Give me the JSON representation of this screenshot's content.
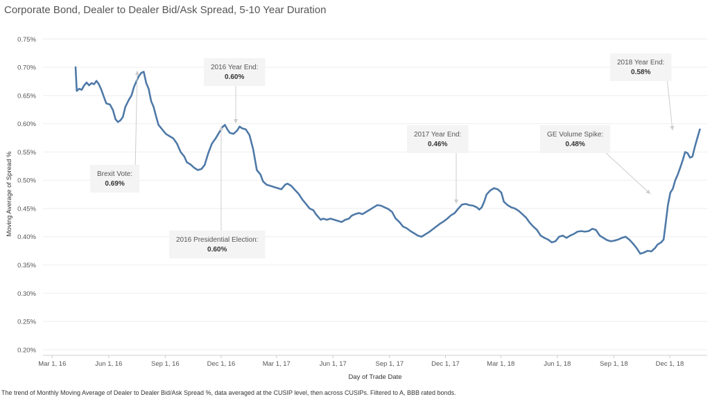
{
  "title": "Corporate Bond, Dealer to Dealer Bid/Ask Spread, 5-10 Year Duration",
  "footnote": "The trend of Monthly Moving Average of Dealer to Dealer Bid/Ask Spread %, data averaged at the CUSIP level, then across CUSIPs. Filtered to A, BBB rated bonds.",
  "colors": {
    "line": "#4e79a7",
    "annotation_bg": "#f4f4f4",
    "axis": "#dddddd"
  },
  "chart_data": {
    "type": "line",
    "xlabel": "Day of Trade Date",
    "ylabel": "Moving Average of Spread %",
    "ylim": [
      0.0019,
      0.0077
    ],
    "xlim": [
      "2016-02-15",
      "2019-01-31"
    ],
    "yticks": [
      {
        "v": 0.0075,
        "label": "0.75%"
      },
      {
        "v": 0.007,
        "label": "0.70%"
      },
      {
        "v": 0.0065,
        "label": "0.65%"
      },
      {
        "v": 0.006,
        "label": "0.60%"
      },
      {
        "v": 0.0055,
        "label": "0.55%"
      },
      {
        "v": 0.005,
        "label": "0.50%"
      },
      {
        "v": 0.0045,
        "label": "0.45%"
      },
      {
        "v": 0.004,
        "label": "0.40%"
      },
      {
        "v": 0.0035,
        "label": "0.35%"
      },
      {
        "v": 0.003,
        "label": "0.30%"
      },
      {
        "v": 0.0025,
        "label": "0.25%"
      },
      {
        "v": 0.002,
        "label": "0.20%"
      }
    ],
    "xticks": [
      {
        "date": "2016-03-01",
        "label": "Mar 1, 16"
      },
      {
        "date": "2016-06-01",
        "label": "Jun 1, 16"
      },
      {
        "date": "2016-09-01",
        "label": "Sep 1, 16"
      },
      {
        "date": "2016-12-01",
        "label": "Dec 1, 16"
      },
      {
        "date": "2017-03-01",
        "label": "Mar 1, 17"
      },
      {
        "date": "2017-06-01",
        "label": "Jun 1, 17"
      },
      {
        "date": "2017-09-01",
        "label": "Sep 1, 17"
      },
      {
        "date": "2017-12-01",
        "label": "Dec 1, 17"
      },
      {
        "date": "2018-03-01",
        "label": "Mar 1, 18"
      },
      {
        "date": "2018-06-01",
        "label": "Jun 1, 18"
      },
      {
        "date": "2018-09-01",
        "label": "Sep 1, 18"
      },
      {
        "date": "2018-12-01",
        "label": "Dec 1, 18"
      }
    ],
    "series": [
      {
        "points": [
          [
            "2016-04-08",
            0.007
          ],
          [
            "2016-04-10",
            0.00658
          ],
          [
            "2016-04-14",
            0.00662
          ],
          [
            "2016-04-18",
            0.0066
          ],
          [
            "2016-04-22",
            0.00668
          ],
          [
            "2016-04-26",
            0.00673
          ],
          [
            "2016-04-30",
            0.00668
          ],
          [
            "2016-05-04",
            0.00672
          ],
          [
            "2016-05-08",
            0.0067
          ],
          [
            "2016-05-12",
            0.00676
          ],
          [
            "2016-05-16",
            0.0067
          ],
          [
            "2016-05-20",
            0.0066
          ],
          [
            "2016-05-24",
            0.00648
          ],
          [
            "2016-05-28",
            0.00636
          ],
          [
            "2016-06-03",
            0.00634
          ],
          [
            "2016-06-08",
            0.00624
          ],
          [
            "2016-06-12",
            0.00608
          ],
          [
            "2016-06-16",
            0.00603
          ],
          [
            "2016-06-20",
            0.00606
          ],
          [
            "2016-06-24",
            0.00612
          ],
          [
            "2016-06-28",
            0.0063
          ],
          [
            "2016-07-04",
            0.00643
          ],
          [
            "2016-07-08",
            0.0065
          ],
          [
            "2016-07-12",
            0.00665
          ],
          [
            "2016-07-16",
            0.00675
          ],
          [
            "2016-07-20",
            0.00684
          ],
          [
            "2016-07-24",
            0.0069
          ],
          [
            "2016-07-28",
            0.00692
          ],
          [
            "2016-08-01",
            0.00672
          ],
          [
            "2016-08-05",
            0.00662
          ],
          [
            "2016-08-09",
            0.0064
          ],
          [
            "2016-08-13",
            0.0063
          ],
          [
            "2016-08-17",
            0.00613
          ],
          [
            "2016-08-21",
            0.00598
          ],
          [
            "2016-08-27",
            0.0059
          ],
          [
            "2016-09-02",
            0.00582
          ],
          [
            "2016-09-08",
            0.00578
          ],
          [
            "2016-09-14",
            0.00574
          ],
          [
            "2016-09-20",
            0.00565
          ],
          [
            "2016-09-26",
            0.0055
          ],
          [
            "2016-10-02",
            0.00542
          ],
          [
            "2016-10-06",
            0.00532
          ],
          [
            "2016-10-12",
            0.00528
          ],
          [
            "2016-10-18",
            0.00522
          ],
          [
            "2016-10-24",
            0.00518
          ],
          [
            "2016-10-30",
            0.0052
          ],
          [
            "2016-11-04",
            0.00527
          ],
          [
            "2016-11-10",
            0.00548
          ],
          [
            "2016-11-16",
            0.00565
          ],
          [
            "2016-11-22",
            0.00574
          ],
          [
            "2016-11-28",
            0.00585
          ],
          [
            "2016-12-03",
            0.00594
          ],
          [
            "2016-12-07",
            0.00598
          ],
          [
            "2016-12-11",
            0.0059
          ],
          [
            "2016-12-15",
            0.00584
          ],
          [
            "2016-12-21",
            0.00582
          ],
          [
            "2016-12-27",
            0.00588
          ],
          [
            "2016-12-31",
            0.00595
          ],
          [
            "2017-01-04",
            0.00592
          ],
          [
            "2017-01-10",
            0.0059
          ],
          [
            "2017-01-16",
            0.0058
          ],
          [
            "2017-01-22",
            0.00555
          ],
          [
            "2017-01-28",
            0.00518
          ],
          [
            "2017-02-03",
            0.0051
          ],
          [
            "2017-02-07",
            0.00498
          ],
          [
            "2017-02-13",
            0.00492
          ],
          [
            "2017-02-19",
            0.0049
          ],
          [
            "2017-02-25",
            0.00488
          ],
          [
            "2017-03-03",
            0.00486
          ],
          [
            "2017-03-09",
            0.00484
          ],
          [
            "2017-03-15",
            0.00492
          ],
          [
            "2017-03-19",
            0.00494
          ],
          [
            "2017-03-25",
            0.0049
          ],
          [
            "2017-03-31",
            0.00483
          ],
          [
            "2017-04-06",
            0.00476
          ],
          [
            "2017-04-12",
            0.00466
          ],
          [
            "2017-04-18",
            0.00458
          ],
          [
            "2017-04-24",
            0.0045
          ],
          [
            "2017-04-30",
            0.00447
          ],
          [
            "2017-05-04",
            0.0044
          ],
          [
            "2017-05-08",
            0.00435
          ],
          [
            "2017-05-12",
            0.0043
          ],
          [
            "2017-05-16",
            0.00432
          ],
          [
            "2017-05-22",
            0.0043
          ],
          [
            "2017-05-28",
            0.00432
          ],
          [
            "2017-06-03",
            0.0043
          ],
          [
            "2017-06-09",
            0.00428
          ],
          [
            "2017-06-15",
            0.00426
          ],
          [
            "2017-06-21",
            0.0043
          ],
          [
            "2017-06-27",
            0.00432
          ],
          [
            "2017-07-01",
            0.00437
          ],
          [
            "2017-07-07",
            0.0044
          ],
          [
            "2017-07-13",
            0.00442
          ],
          [
            "2017-07-19",
            0.0044
          ],
          [
            "2017-07-25",
            0.00444
          ],
          [
            "2017-07-31",
            0.00448
          ],
          [
            "2017-08-06",
            0.00452
          ],
          [
            "2017-08-12",
            0.00456
          ],
          [
            "2017-08-18",
            0.00455
          ],
          [
            "2017-08-24",
            0.00452
          ],
          [
            "2017-08-30",
            0.00449
          ],
          [
            "2017-09-05",
            0.00444
          ],
          [
            "2017-09-11",
            0.00432
          ],
          [
            "2017-09-17",
            0.00426
          ],
          [
            "2017-09-23",
            0.00418
          ],
          [
            "2017-09-29",
            0.00415
          ],
          [
            "2017-10-05",
            0.0041
          ],
          [
            "2017-10-11",
            0.00406
          ],
          [
            "2017-10-17",
            0.00402
          ],
          [
            "2017-10-23",
            0.004
          ],
          [
            "2017-10-29",
            0.00404
          ],
          [
            "2017-11-04",
            0.00408
          ],
          [
            "2017-11-10",
            0.00413
          ],
          [
            "2017-11-16",
            0.00418
          ],
          [
            "2017-11-22",
            0.00423
          ],
          [
            "2017-11-28",
            0.00427
          ],
          [
            "2017-12-04",
            0.00432
          ],
          [
            "2017-12-10",
            0.00438
          ],
          [
            "2017-12-16",
            0.00442
          ],
          [
            "2017-12-22",
            0.0045
          ],
          [
            "2017-12-28",
            0.00457
          ],
          [
            "2018-01-03",
            0.00458
          ],
          [
            "2018-01-09",
            0.00456
          ],
          [
            "2018-01-15",
            0.00455
          ],
          [
            "2018-01-21",
            0.00452
          ],
          [
            "2018-01-25",
            0.00448
          ],
          [
            "2018-01-29",
            0.00452
          ],
          [
            "2018-02-02",
            0.00462
          ],
          [
            "2018-02-06",
            0.00475
          ],
          [
            "2018-02-12",
            0.00482
          ],
          [
            "2018-02-18",
            0.00486
          ],
          [
            "2018-02-24",
            0.00484
          ],
          [
            "2018-03-02",
            0.00478
          ],
          [
            "2018-03-06",
            0.00462
          ],
          [
            "2018-03-12",
            0.00456
          ],
          [
            "2018-03-18",
            0.00452
          ],
          [
            "2018-03-24",
            0.0045
          ],
          [
            "2018-03-30",
            0.00446
          ],
          [
            "2018-04-05",
            0.0044
          ],
          [
            "2018-04-11",
            0.00434
          ],
          [
            "2018-04-17",
            0.00425
          ],
          [
            "2018-04-23",
            0.00418
          ],
          [
            "2018-04-29",
            0.00412
          ],
          [
            "2018-05-05",
            0.00402
          ],
          [
            "2018-05-11",
            0.00398
          ],
          [
            "2018-05-17",
            0.00395
          ],
          [
            "2018-05-23",
            0.0039
          ],
          [
            "2018-05-29",
            0.00392
          ],
          [
            "2018-06-04",
            0.004
          ],
          [
            "2018-06-10",
            0.00402
          ],
          [
            "2018-06-16",
            0.00398
          ],
          [
            "2018-06-22",
            0.00402
          ],
          [
            "2018-06-28",
            0.00405
          ],
          [
            "2018-07-04",
            0.00409
          ],
          [
            "2018-07-10",
            0.0041
          ],
          [
            "2018-07-16",
            0.00409
          ],
          [
            "2018-07-22",
            0.0041
          ],
          [
            "2018-07-28",
            0.00414
          ],
          [
            "2018-08-03",
            0.00412
          ],
          [
            "2018-08-09",
            0.00402
          ],
          [
            "2018-08-15",
            0.00398
          ],
          [
            "2018-08-21",
            0.00394
          ],
          [
            "2018-08-27",
            0.00392
          ],
          [
            "2018-09-02",
            0.00393
          ],
          [
            "2018-09-08",
            0.00395
          ],
          [
            "2018-09-14",
            0.00398
          ],
          [
            "2018-09-20",
            0.004
          ],
          [
            "2018-09-26",
            0.00395
          ],
          [
            "2018-10-02",
            0.00388
          ],
          [
            "2018-10-08",
            0.0038
          ],
          [
            "2018-10-14",
            0.0037
          ],
          [
            "2018-10-20",
            0.00372
          ],
          [
            "2018-10-26",
            0.00375
          ],
          [
            "2018-11-01",
            0.00374
          ],
          [
            "2018-11-07",
            0.0038
          ],
          [
            "2018-11-11",
            0.00386
          ],
          [
            "2018-11-17",
            0.0039
          ],
          [
            "2018-11-21",
            0.00395
          ],
          [
            "2018-11-24",
            0.0042
          ],
          [
            "2018-11-28",
            0.00456
          ],
          [
            "2018-12-02",
            0.00478
          ],
          [
            "2018-12-06",
            0.00485
          ],
          [
            "2018-12-10",
            0.005
          ],
          [
            "2018-12-14",
            0.0051
          ],
          [
            "2018-12-18",
            0.00522
          ],
          [
            "2018-12-22",
            0.00535
          ],
          [
            "2018-12-26",
            0.0055
          ],
          [
            "2018-12-30",
            0.00548
          ],
          [
            "2019-01-03",
            0.0054
          ],
          [
            "2019-01-07",
            0.00542
          ],
          [
            "2019-01-11",
            0.0056
          ],
          [
            "2019-01-15",
            0.00575
          ],
          [
            "2019-01-19",
            0.0059
          ]
        ]
      }
    ],
    "annotations": [
      {
        "label": "Brexit Vote:",
        "value": "0.69%",
        "box": [
          130,
          238
        ],
        "target": [
          198,
          102
        ]
      },
      {
        "label": "2016 Year End:",
        "value": "0.60%",
        "box": [
          294,
          84
        ],
        "target": [
          340,
          178
        ]
      },
      {
        "label": "2016 Presidential Election:",
        "value": "0.60%",
        "box": [
          244,
          333
        ],
        "target": [
          319,
          182
        ]
      },
      {
        "label": "2017 Year End:",
        "value": "0.46%",
        "box": [
          587,
          181
        ],
        "target": [
          658,
          294
        ]
      },
      {
        "label": "GE Volume Spike:",
        "value": "0.48%",
        "box": [
          779,
          181
        ],
        "target": [
          938,
          280
        ]
      },
      {
        "label": "2018 Year End:",
        "value": "0.58%",
        "box": [
          880,
          77
        ],
        "target": [
          970,
          188
        ]
      }
    ]
  }
}
